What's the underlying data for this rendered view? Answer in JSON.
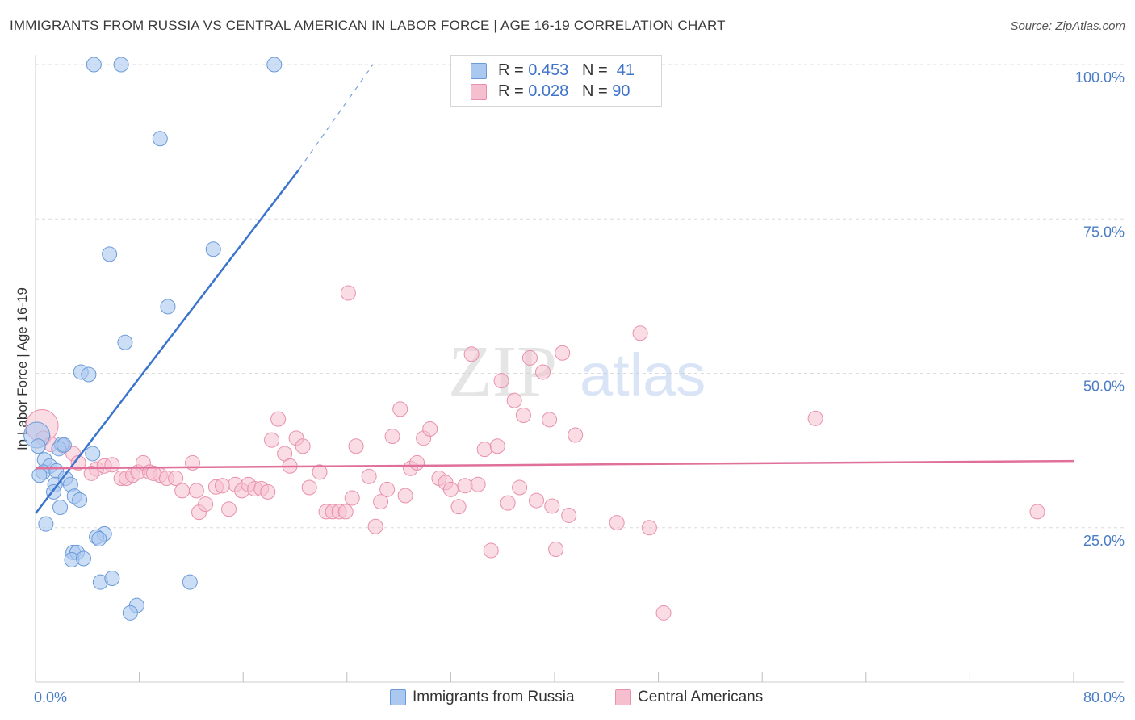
{
  "header": {
    "title": "IMMIGRANTS FROM RUSSIA VS CENTRAL AMERICAN IN LABOR FORCE | AGE 16-19 CORRELATION CHART",
    "source": "Source: ZipAtlas.com"
  },
  "watermark": {
    "part1": "ZIP",
    "part2": "atlas"
  },
  "legend_top": {
    "rows": [
      {
        "r_label": "R = ",
        "r_value": "0.453",
        "n_label": "N = ",
        "n_value": "41"
      },
      {
        "r_label": "R = ",
        "r_value": "0.028",
        "n_label": "N = ",
        "n_value": "90"
      }
    ]
  },
  "chart_data": {
    "type": "scatter",
    "title": "IMMIGRANTS FROM RUSSIA VS CENTRAL AMERICAN IN LABOR FORCE | AGE 16-19 CORRELATION CHART",
    "xlabel": "",
    "ylabel": "In Labor Force | Age 16-19",
    "xlim": [
      0,
      80
    ],
    "ylim": [
      0,
      105
    ],
    "x_tick_labels": [
      "0.0%",
      "80.0%"
    ],
    "y_ticks": [
      25,
      50,
      75,
      100
    ],
    "y_tick_labels": [
      "25.0%",
      "50.0%",
      "75.0%",
      "100.0%"
    ],
    "grid": true,
    "legend_position": "bottom",
    "colors": {
      "blue_fill": "#aac8f0",
      "blue_stroke": "#6a9ad8",
      "blue_line": "#3b74cc",
      "pink_fill": "#f6bfd0",
      "pink_stroke": "#e890ac",
      "pink_line": "#e0709a",
      "tick_text": "#4a7cc6",
      "grid": "#dcdcdc"
    },
    "series": [
      {
        "name": "Immigrants from Russia",
        "r": 0.453,
        "n": 41,
        "trend": {
          "x0": 0.0,
          "y0": 27.3,
          "x1": 20.3,
          "y1": 83.0,
          "dash_x1": 26.0,
          "dash_y1": 100.0
        },
        "points": [
          [
            4.5,
            100
          ],
          [
            6.6,
            100
          ],
          [
            18.4,
            100
          ],
          [
            9.6,
            88
          ],
          [
            5.7,
            69.3
          ],
          [
            13.7,
            70.1
          ],
          [
            10.2,
            60.8
          ],
          [
            6.9,
            55
          ],
          [
            3.5,
            50.2
          ],
          [
            4.1,
            49.8
          ],
          [
            0.1,
            40
          ],
          [
            0.2,
            38.2
          ],
          [
            2.0,
            38.5
          ],
          [
            0.7,
            36
          ],
          [
            4.4,
            37
          ],
          [
            1.1,
            35
          ],
          [
            0.6,
            34
          ],
          [
            1.6,
            34.2
          ],
          [
            0.3,
            33.5
          ],
          [
            2.3,
            33
          ],
          [
            1.5,
            32
          ],
          [
            2.7,
            32
          ],
          [
            1.4,
            30.8
          ],
          [
            3.0,
            30.1
          ],
          [
            3.4,
            29.5
          ],
          [
            1.9,
            28.3
          ],
          [
            0.8,
            25.6
          ],
          [
            5.3,
            24
          ],
          [
            4.7,
            23.5
          ],
          [
            4.9,
            23.2
          ],
          [
            2.9,
            21
          ],
          [
            3.2,
            21
          ],
          [
            2.8,
            19.8
          ],
          [
            3.7,
            20
          ],
          [
            5.0,
            16.2
          ],
          [
            5.9,
            16.8
          ],
          [
            11.9,
            16.2
          ],
          [
            7.8,
            12.4
          ],
          [
            7.3,
            11.2
          ],
          [
            1.8,
            37.8
          ],
          [
            2.2,
            38.4
          ]
        ]
      },
      {
        "name": "Central Americans",
        "r": 0.028,
        "n": 90,
        "trend": {
          "x0": 0.0,
          "y0": 34.6,
          "x1": 80.0,
          "y1": 35.8
        },
        "points": [
          [
            0.5,
            41.5
          ],
          [
            0.6,
            39.5
          ],
          [
            1.2,
            38.5
          ],
          [
            2.1,
            38.3
          ],
          [
            2.9,
            37
          ],
          [
            3.3,
            35.5
          ],
          [
            4.7,
            34.5
          ],
          [
            5.3,
            35
          ],
          [
            5.9,
            35.2
          ],
          [
            4.3,
            33.8
          ],
          [
            6.6,
            33
          ],
          [
            7.0,
            33
          ],
          [
            7.5,
            33.5
          ],
          [
            7.9,
            34
          ],
          [
            8.3,
            35.5
          ],
          [
            8.8,
            34
          ],
          [
            9.6,
            33.5
          ],
          [
            10.1,
            33
          ],
          [
            10.8,
            33
          ],
          [
            11.3,
            31
          ],
          [
            12.1,
            35.5
          ],
          [
            12.4,
            31
          ],
          [
            12.6,
            27.5
          ],
          [
            13.1,
            28.8
          ],
          [
            13.9,
            31.6
          ],
          [
            14.4,
            31.8
          ],
          [
            14.9,
            28
          ],
          [
            15.4,
            32
          ],
          [
            15.9,
            31
          ],
          [
            16.4,
            32
          ],
          [
            16.9,
            31.3
          ],
          [
            17.4,
            31.3
          ],
          [
            17.9,
            30.8
          ],
          [
            18.2,
            39.2
          ],
          [
            18.7,
            42.6
          ],
          [
            19.2,
            37
          ],
          [
            19.6,
            35
          ],
          [
            20.1,
            39.5
          ],
          [
            20.6,
            38.2
          ],
          [
            21.1,
            31.5
          ],
          [
            21.9,
            34
          ],
          [
            22.4,
            27.6
          ],
          [
            22.9,
            27.6
          ],
          [
            23.4,
            27.6
          ],
          [
            23.9,
            27.6
          ],
          [
            24.4,
            29.8
          ],
          [
            24.7,
            38.2
          ],
          [
            25.7,
            33.3
          ],
          [
            26.2,
            25.2
          ],
          [
            26.6,
            29.2
          ],
          [
            27.1,
            31.2
          ],
          [
            27.5,
            39.8
          ],
          [
            28.1,
            44.2
          ],
          [
            28.5,
            30.2
          ],
          [
            28.9,
            34.6
          ],
          [
            29.4,
            35.5
          ],
          [
            29.9,
            39.5
          ],
          [
            30.4,
            41
          ],
          [
            31.1,
            33
          ],
          [
            31.6,
            32.3
          ],
          [
            32.0,
            31.2
          ],
          [
            32.6,
            28.4
          ],
          [
            33.1,
            31.8
          ],
          [
            33.6,
            53.1
          ],
          [
            34.1,
            32
          ],
          [
            34.6,
            37.7
          ],
          [
            35.1,
            21.3
          ],
          [
            35.6,
            38.2
          ],
          [
            35.9,
            48.8
          ],
          [
            36.4,
            29
          ],
          [
            36.9,
            45.6
          ],
          [
            37.3,
            31.5
          ],
          [
            37.6,
            43.2
          ],
          [
            38.1,
            52.5
          ],
          [
            38.6,
            29.4
          ],
          [
            39.1,
            50.2
          ],
          [
            39.6,
            42.5
          ],
          [
            39.8,
            28.5
          ],
          [
            40.1,
            21.5
          ],
          [
            40.6,
            53.3
          ],
          [
            41.1,
            27
          ],
          [
            41.6,
            40
          ],
          [
            44.8,
            25.8
          ],
          [
            46.6,
            56.5
          ],
          [
            47.3,
            25
          ],
          [
            48.4,
            11.2
          ],
          [
            60.1,
            42.7
          ],
          [
            77.2,
            27.6
          ],
          [
            24.1,
            63
          ],
          [
            9.1,
            33.8
          ]
        ]
      }
    ]
  }
}
